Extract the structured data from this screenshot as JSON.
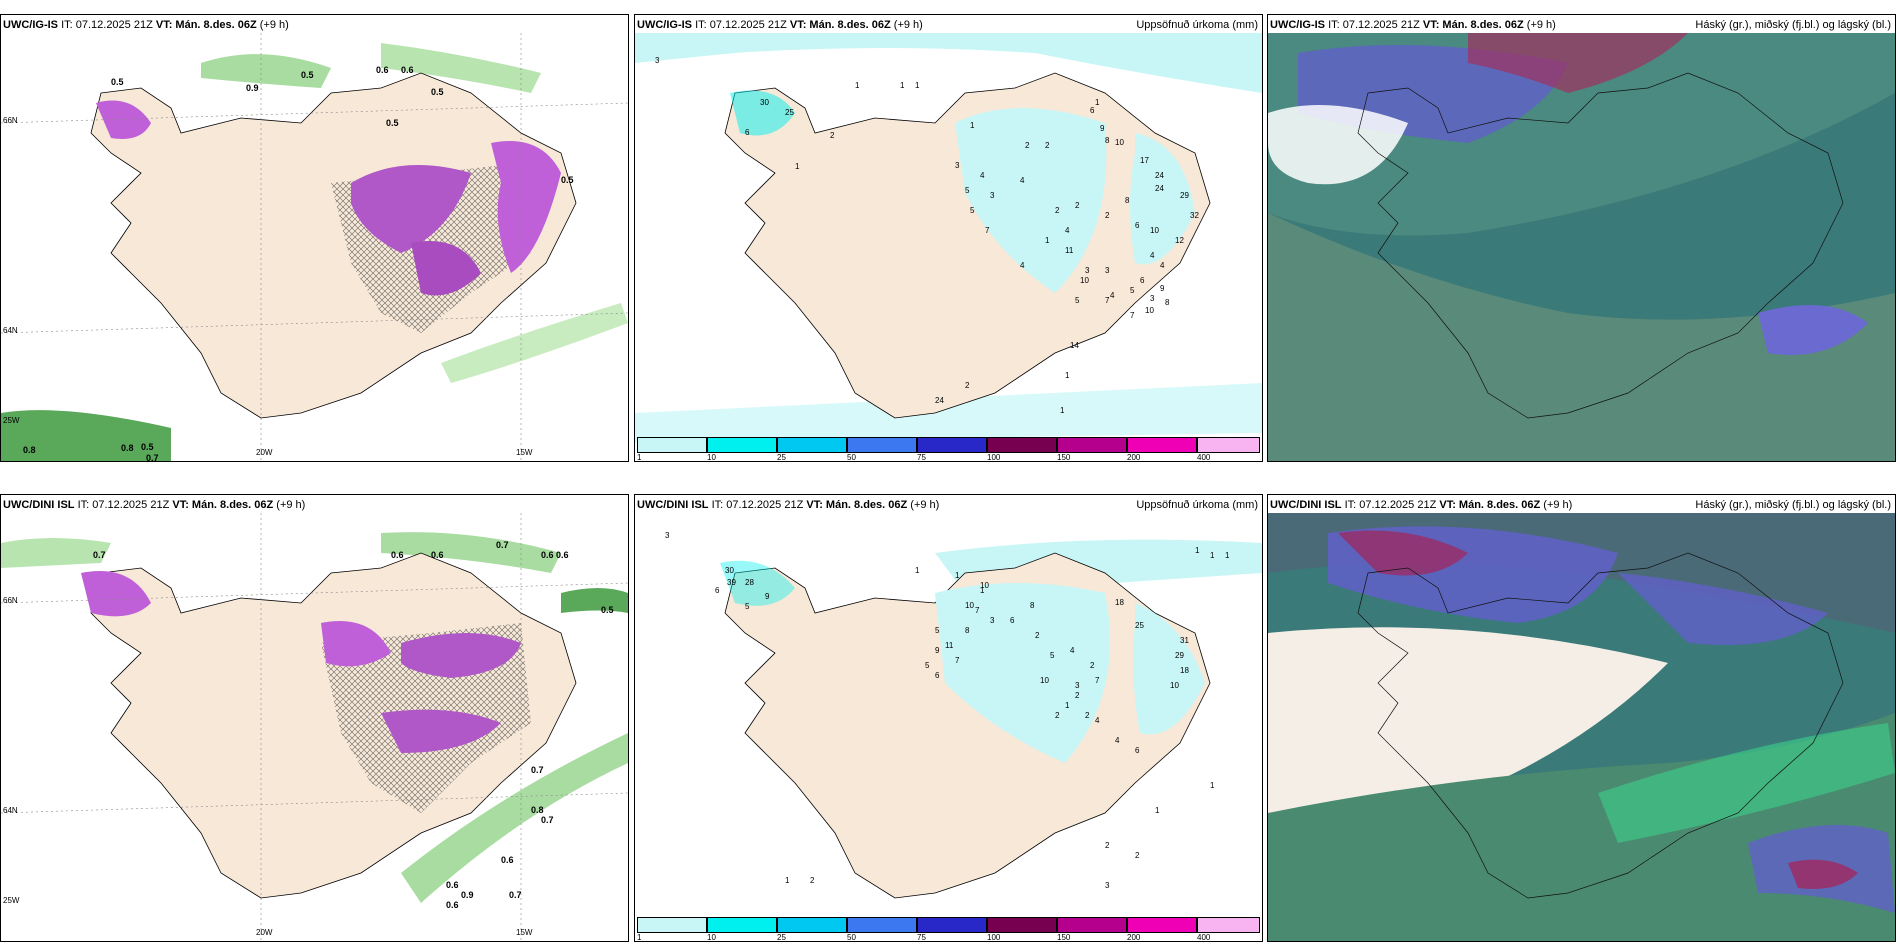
{
  "panels": {
    "p1": {
      "model": "UWC/IG-IS",
      "it": "IT: 07.12.2025 21Z",
      "vt_label": "VT:",
      "vt": "Mán. 8.des. 06Z",
      "lead": "(+9 h)",
      "right": ""
    },
    "p2": {
      "model": "UWC/IG-IS",
      "it": "IT: 07.12.2025 21Z",
      "vt_label": "VT:",
      "vt": "Mán. 8.des. 06Z",
      "lead": "(+9 h)",
      "right": "Uppsöfnuð úrkoma (mm)"
    },
    "p3": {
      "model": "UWC/IG-IS",
      "it": "IT: 07.12.2025 21Z",
      "vt_label": "VT:",
      "vt": "Mán. 8.des. 06Z",
      "lead": "(+9 h)",
      "right": "Háský (gr.), miðský (fj.bl.) og lágský (bl.)"
    },
    "p4": {
      "model": "UWC/DINI ISL",
      "it": "IT: 07.12.2025 21Z",
      "vt_label": "VT:",
      "vt": "Mán. 8.des. 06Z",
      "lead": "(+9 h)",
      "right": ""
    },
    "p5": {
      "model": "UWC/DINI ISL",
      "it": "IT: 07.12.2025 21Z",
      "vt_label": "VT:",
      "vt": "Mán. 8.des. 06Z",
      "lead": "(+9 h)",
      "right": "Uppsöfnuð úrkoma (mm)"
    },
    "p6": {
      "model": "UWC/DINI ISL",
      "it": "IT: 07.12.2025 21Z",
      "vt_label": "VT:",
      "vt": "Mán. 8.des. 06Z",
      "lead": "(+9 h)",
      "right": "Háský (gr.), miðský (fj.bl.) og lágský (bl.)"
    }
  },
  "axis_labels": {
    "lon20": "20W",
    "lon15": "15W",
    "lat66": "66N",
    "lat64": "64N",
    "lon25": "25W"
  },
  "colorbar": {
    "labels": [
      "1",
      "10",
      "25",
      "50",
      "75",
      "100",
      "150",
      "200",
      "400"
    ],
    "colors": [
      "#c8f6f6",
      "#00f0f0",
      "#00c8f0",
      "#3c78f0",
      "#2828c8",
      "#780050",
      "#b4008c",
      "#f000b4",
      "#f8b4f0"
    ]
  },
  "colors": {
    "land": "#f7e8d8",
    "snow_ptype": "#c060d8",
    "sea_precip": "#c8f6f6",
    "cloud_high": "#5a7a9a",
    "cloud_mid": "#6060c8",
    "cloud_low": "#3a8a80"
  },
  "precip_labels_top": [
    "3",
    "1",
    "1",
    "1",
    "1",
    "30",
    "25",
    "6",
    "2",
    "2",
    "1",
    "4",
    "3",
    "2",
    "1",
    "6",
    "9",
    "8",
    "10",
    "17",
    "24",
    "24",
    "29",
    "4",
    "3",
    "5",
    "7",
    "5",
    "2",
    "1",
    "4",
    "2",
    "2",
    "8",
    "11",
    "3",
    "3",
    "4",
    "6",
    "5",
    "4",
    "7",
    "10",
    "10",
    "7",
    "5",
    "9",
    "8",
    "3",
    "32",
    "12",
    "4",
    "6",
    "10",
    "4",
    "14",
    "1",
    "1",
    "2",
    "24"
  ],
  "precip_labels_bottom": [
    "3",
    "1",
    "10",
    "30",
    "39",
    "28",
    "6",
    "9",
    "5",
    "1",
    "1",
    "10",
    "7",
    "3",
    "8",
    "11",
    "5",
    "9",
    "7",
    "5",
    "6",
    "6",
    "8",
    "2",
    "5",
    "18",
    "25",
    "31",
    "29",
    "18",
    "10",
    "4",
    "2",
    "10",
    "3",
    "7",
    "2",
    "1",
    "2",
    "2",
    "4",
    "4",
    "6",
    "1",
    "1",
    "1",
    "1",
    "1",
    "2",
    "2",
    "3",
    "1",
    "2"
  ],
  "ptype_values_top": [
    "0.5",
    "0.5",
    "0.9",
    "0.6",
    "0.5",
    "0.6",
    "0.5",
    "0.5",
    "0.8",
    "0.8",
    "0.5",
    "0.7"
  ],
  "ptype_values_bottom": [
    "0.7",
    "0.6",
    "0.6",
    "0.7",
    "0.5",
    "0.6",
    "0.6",
    "0.7",
    "0.7",
    "0.6",
    "0.9",
    "0.6",
    "0.6",
    "0.8",
    "0.7"
  ]
}
